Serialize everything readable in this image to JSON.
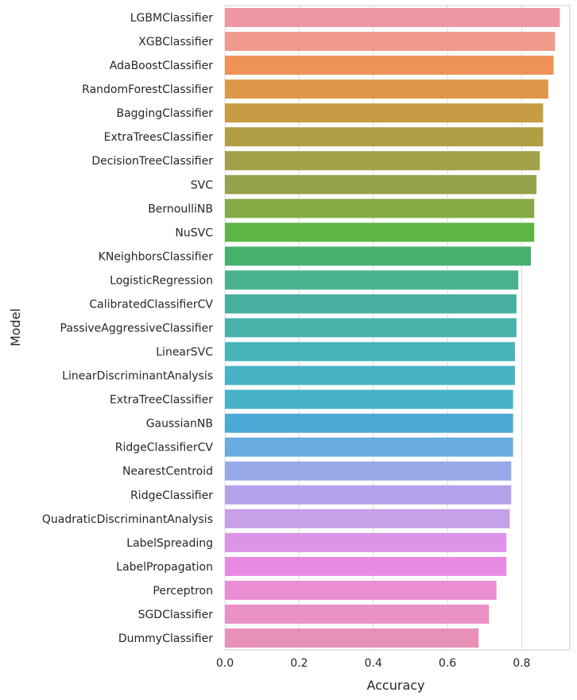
{
  "chart_data": {
    "type": "bar",
    "orientation": "horizontal",
    "xlabel": "Accuracy",
    "ylabel": "Model",
    "xlim": [
      0,
      0.93
    ],
    "xticks": [
      0.0,
      0.2,
      0.4,
      0.6,
      0.8
    ],
    "xtick_labels": [
      "0.0",
      "0.2",
      "0.4",
      "0.6",
      "0.8"
    ],
    "grid": "vertical",
    "legend": "none",
    "categories": [
      "LGBMClassifier",
      "XGBClassifier",
      "AdaBoostClassifier",
      "RandomForestClassifier",
      "BaggingClassifier",
      "ExtraTreesClassifier",
      "DecisionTreeClassifier",
      "SVC",
      "BernoulliNB",
      "NuSVC",
      "KNeighborsClassifier",
      "LogisticRegression",
      "CalibratedClassifierCV",
      "PassiveAggressiveClassifier",
      "LinearSVC",
      "LinearDiscriminantAnalysis",
      "ExtraTreeClassifier",
      "GaussianNB",
      "RidgeClassifierCV",
      "NearestCentroid",
      "RidgeClassifier",
      "QuadraticDiscriminantAnalysis",
      "LabelSpreading",
      "LabelPropagation",
      "Perceptron",
      "SGDClassifier",
      "DummyClassifier"
    ],
    "values": [
      0.903,
      0.89,
      0.886,
      0.872,
      0.858,
      0.858,
      0.849,
      0.84,
      0.834,
      0.834,
      0.825,
      0.791,
      0.786,
      0.786,
      0.782,
      0.782,
      0.777,
      0.777,
      0.777,
      0.772,
      0.772,
      0.768,
      0.759,
      0.759,
      0.732,
      0.712,
      0.684
    ],
    "colors": [
      "#ed97a2",
      "#ef9a8c",
      "#ee9258",
      "#dd984a",
      "#c79c44",
      "#b09f44",
      "#a2a149",
      "#95a44c",
      "#86ab46",
      "#5cb545",
      "#47b26e",
      "#48b28f",
      "#47b0a0",
      "#47b1aa",
      "#47b3b7",
      "#47b3c4",
      "#48b2cb",
      "#4aa9d5",
      "#68ace0",
      "#97a9e9",
      "#b2a3ea",
      "#c7a0ea",
      "#dc94e8",
      "#e98ae2",
      "#ea8dd2",
      "#ea91c5",
      "#e891b6"
    ]
  }
}
